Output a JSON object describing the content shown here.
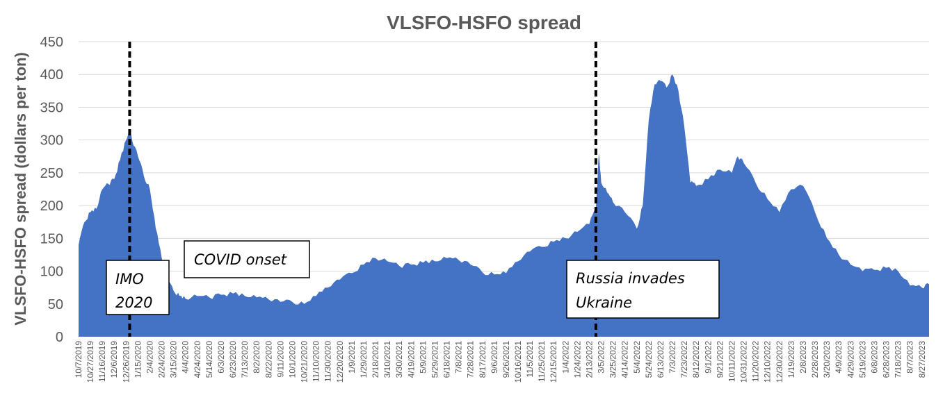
{
  "chart_data": {
    "type": "area",
    "title": "VLSFO-HSFO spread",
    "ylabel": "VLSFO-HSFO spread (dollars per ton)",
    "xlabel": "",
    "ylim": [
      0,
      450
    ],
    "yticks": [
      0,
      50,
      100,
      150,
      200,
      250,
      300,
      350,
      400,
      450
    ],
    "grid": true,
    "color": "#4472C4",
    "x_range": [
      "10/7/2019",
      "9/8/2023"
    ],
    "xtick_labels": [
      "10/7/2019",
      "10/27/2019",
      "11/16/2019",
      "12/6/2019",
      "12/26/2019",
      "1/15/2020",
      "2/4/2020",
      "2/24/2020",
      "3/15/2020",
      "4/4/2020",
      "4/24/2020",
      "5/14/2020",
      "6/3/2020",
      "6/23/2020",
      "7/13/2020",
      "8/2/2020",
      "8/22/2020",
      "9/11/2020",
      "10/1/2020",
      "10/21/2020",
      "11/10/2020",
      "11/30/2020",
      "12/20/2020",
      "1/9/2021",
      "1/29/2021",
      "2/18/2021",
      "3/10/2021",
      "3/30/2021",
      "4/19/2021",
      "5/9/2021",
      "5/29/2021",
      "6/18/2021",
      "7/8/2021",
      "7/28/2021",
      "8/17/2021",
      "9/6/2021",
      "9/26/2021",
      "10/16/2021",
      "11/5/2021",
      "11/25/2021",
      "12/15/2021",
      "1/4/2022",
      "1/24/2022",
      "2/13/2022",
      "3/5/2022",
      "3/25/2022",
      "4/14/2022",
      "5/4/2022",
      "5/24/2022",
      "6/13/2022",
      "7/3/2022",
      "7/23/2022",
      "8/12/2022",
      "9/1/2022",
      "9/21/2022",
      "10/11/2022",
      "10/31/2022",
      "11/20/2022",
      "12/10/2022",
      "12/30/2022",
      "1/19/2023",
      "2/8/2023",
      "2/28/2023",
      "3/20/2023",
      "4/9/2023",
      "4/29/2023",
      "5/19/2023",
      "6/8/2023",
      "6/28/2023",
      "7/18/2023",
      "8/7/2023",
      "8/27/2023"
    ],
    "series": [
      {
        "x": [
          "10/7/2019",
          "10/17/2019",
          "10/27/2019",
          "11/6/2019",
          "11/16/2019",
          "11/26/2019",
          "12/6/2019",
          "12/16/2019",
          "12/26/2019",
          "1/1/2020",
          "1/5/2020",
          "1/15/2020",
          "1/25/2020",
          "2/4/2020",
          "2/14/2020",
          "2/24/2020",
          "3/5/2020",
          "3/15/2020",
          "3/25/2020",
          "4/4/2020",
          "4/24/2020",
          "5/14/2020",
          "6/3/2020",
          "6/23/2020",
          "7/13/2020",
          "8/2/2020",
          "8/22/2020",
          "9/11/2020",
          "10/1/2020",
          "10/21/2020",
          "11/10/2020",
          "11/30/2020",
          "12/20/2020",
          "1/9/2021",
          "1/29/2021",
          "2/18/2021",
          "3/10/2021",
          "3/30/2021",
          "4/19/2021",
          "5/9/2021",
          "5/29/2021",
          "6/18/2021",
          "7/8/2021",
          "7/28/2021",
          "8/17/2021",
          "9/6/2021",
          "9/26/2021",
          "10/16/2021",
          "11/5/2021",
          "11/25/2021",
          "12/15/2021",
          "1/4/2022",
          "1/24/2022",
          "2/13/2022",
          "2/24/2022",
          "3/1/2022",
          "3/5/2022",
          "3/15/2022",
          "3/25/2022",
          "4/14/2022",
          "5/4/2022",
          "5/14/2022",
          "5/24/2022",
          "6/3/2022",
          "6/13/2022",
          "6/23/2022",
          "7/3/2022",
          "7/13/2022",
          "7/23/2022",
          "8/2/2022",
          "8/12/2022",
          "9/1/2022",
          "9/21/2022",
          "10/11/2022",
          "10/21/2022",
          "10/31/2022",
          "11/20/2022",
          "12/10/2022",
          "12/30/2022",
          "1/19/2023",
          "2/8/2023",
          "2/28/2023",
          "3/20/2023",
          "4/9/2023",
          "4/29/2023",
          "5/19/2023",
          "6/8/2023",
          "6/28/2023",
          "7/18/2023",
          "8/7/2023",
          "8/27/2023",
          "9/8/2023"
        ],
        "values": [
          140,
          175,
          190,
          195,
          225,
          233,
          240,
          270,
          300,
          315,
          300,
          275,
          245,
          225,
          165,
          120,
          85,
          70,
          62,
          58,
          62,
          60,
          64,
          66,
          62,
          60,
          57,
          53,
          53,
          50,
          62,
          75,
          87,
          97,
          110,
          120,
          115,
          108,
          110,
          113,
          115,
          120,
          117,
          110,
          98,
          95,
          97,
          115,
          130,
          137,
          145,
          150,
          160,
          172,
          195,
          280,
          235,
          220,
          205,
          190,
          165,
          200,
          330,
          385,
          390,
          380,
          400,
          375,
          320,
          235,
          230,
          240,
          255,
          250,
          275,
          265,
          235,
          210,
          190,
          225,
          230,
          190,
          150,
          125,
          110,
          100,
          102,
          105,
          100,
          78,
          75,
          80
        ]
      }
    ],
    "annotations": [
      {
        "text_line1": "IMO",
        "text_line2": "2020",
        "at": "1/1/2020"
      },
      {
        "text_line1": "COVID onset",
        "at": "3/15/2020"
      },
      {
        "text_line1": "Russia invades",
        "text_line2": "Ukraine",
        "at": "2/24/2022"
      }
    ]
  }
}
